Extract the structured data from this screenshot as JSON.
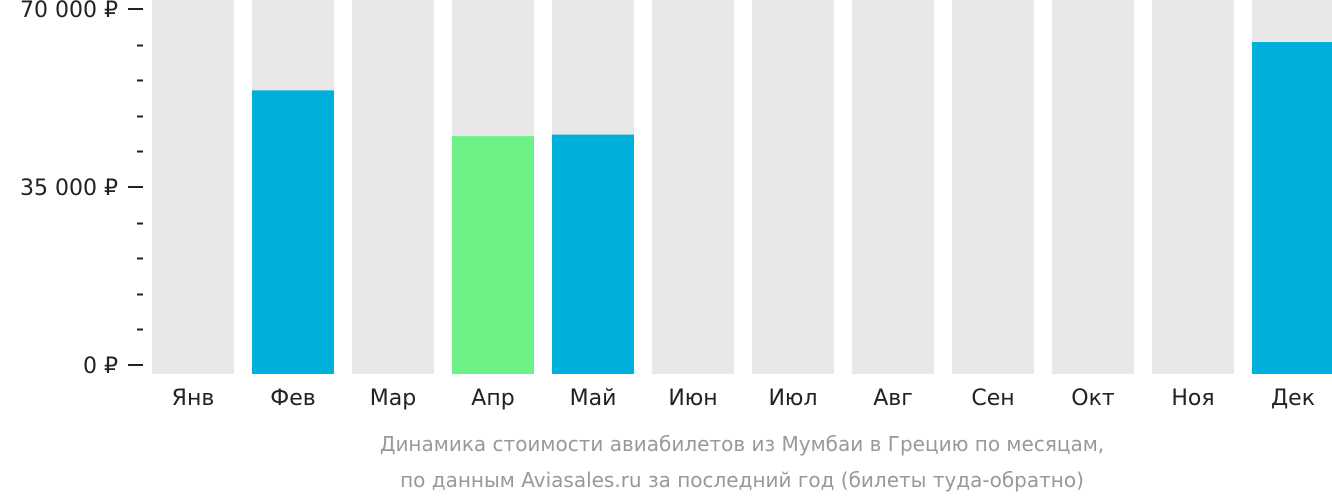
{
  "chart_data": {
    "type": "bar",
    "categories": [
      "Янв",
      "Фев",
      "Мар",
      "Апр",
      "Май",
      "Июн",
      "Июл",
      "Авг",
      "Сен",
      "Окт",
      "Ноя",
      "Дек"
    ],
    "values": [
      null,
      54000,
      null,
      45000,
      45300,
      null,
      null,
      null,
      null,
      null,
      null,
      63500
    ],
    "bar_colors": [
      null,
      "#00b0dc",
      null,
      "#6cf287",
      "#00b0dc",
      null,
      null,
      null,
      null,
      null,
      null,
      "#00b0dc"
    ],
    "ylim": [
      0,
      70000
    ],
    "y_tick_labels": [
      {
        "value": 0,
        "label": "0 ₽"
      },
      {
        "value": 35000,
        "label": "35 000 ₽"
      },
      {
        "value": 70000,
        "label": "70 000 ₽"
      }
    ],
    "y_minor_step": 7000,
    "caption_lines": [
      "Динамика стоимости авиабилетов из Мумбаи в Грецию по месяцам,",
      "по данным Aviasales.ru за последний год (билеты туда-обратно)"
    ]
  },
  "colors": {
    "background_bar": "#e8e8e8",
    "primary": "#00b0dc",
    "cheapest": "#6cf287",
    "axis": "#222222",
    "caption": "#999999"
  }
}
